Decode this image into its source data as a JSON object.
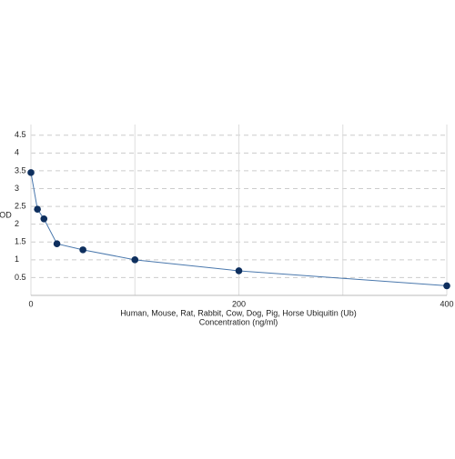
{
  "chart_data": {
    "type": "line",
    "x_label": "Human, Mouse, Rat, Rabbit, Cow, Dog, Pig, Horse Ubiquitin (Ub)",
    "x_label_2": "Concentration (ng/ml)",
    "y_label": "OD",
    "x": [
      0,
      6.25,
      12.5,
      25,
      50,
      100,
      200,
      400
    ],
    "series": [
      {
        "color": "#4a78ad",
        "marker_color": "#0e2f5e",
        "values": [
          3.45,
          2.42,
          2.15,
          1.45,
          1.28,
          1.0,
          0.69,
          0.27
        ]
      }
    ],
    "xlim": [
      0,
      400
    ],
    "xticks": [
      0,
      200,
      400
    ],
    "x_minor_grid": [
      100,
      300
    ],
    "ylim": [
      0,
      4.8
    ],
    "yticks": [
      0.5,
      1,
      1.5,
      2,
      2.5,
      3,
      3.5,
      4,
      4.5
    ],
    "grid": true
  }
}
